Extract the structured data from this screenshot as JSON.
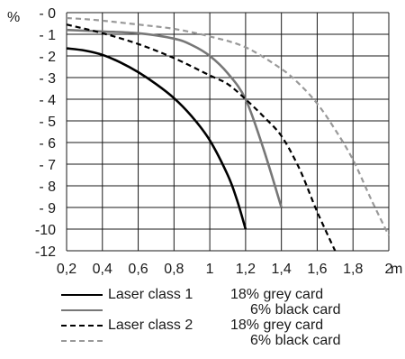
{
  "chart_data": {
    "type": "line",
    "xlabel": "m",
    "ylabel": "%",
    "xlim": [
      0.2,
      2.0
    ],
    "ylim": [
      -12,
      0
    ],
    "x_ticks": [
      {
        "v": 0.2,
        "label": "0,2"
      },
      {
        "v": 0.4,
        "label": "0,4"
      },
      {
        "v": 0.6,
        "label": "0,6"
      },
      {
        "v": 0.8,
        "label": "0,8"
      },
      {
        "v": 1.0,
        "label": "1"
      },
      {
        "v": 1.2,
        "label": "1,2"
      },
      {
        "v": 1.4,
        "label": "1,4"
      },
      {
        "v": 1.6,
        "label": "1,6"
      },
      {
        "v": 1.8,
        "label": "1,8"
      },
      {
        "v": 2.0,
        "label": "2"
      }
    ],
    "y_ticks": [
      {
        "v": 0,
        "label": "- 0"
      },
      {
        "v": -1,
        "label": "- 1"
      },
      {
        "v": -2,
        "label": "- 2"
      },
      {
        "v": -3,
        "label": "- 3"
      },
      {
        "v": -4,
        "label": "- 4"
      },
      {
        "v": -5,
        "label": "- 5"
      },
      {
        "v": -6,
        "label": "- 6"
      },
      {
        "v": -7,
        "label": "- 7"
      },
      {
        "v": -8,
        "label": "- 8"
      },
      {
        "v": -9,
        "label": "- 9"
      },
      {
        "v": -10,
        "label": "-10"
      },
      {
        "v": -12,
        "label": "-12"
      }
    ],
    "grid": true,
    "legend_position": "bottom",
    "series": [
      {
        "laser": "Laser class 1",
        "target": "18% grey card",
        "color": "#000000",
        "dash": "solid",
        "points": [
          [
            0.2,
            -1.65
          ],
          [
            0.3,
            -1.75
          ],
          [
            0.4,
            -1.95
          ],
          [
            0.5,
            -2.3
          ],
          [
            0.6,
            -2.75
          ],
          [
            0.7,
            -3.3
          ],
          [
            0.8,
            -3.95
          ],
          [
            0.9,
            -4.8
          ],
          [
            1.0,
            -5.9
          ],
          [
            1.1,
            -7.5
          ],
          [
            1.15,
            -8.6
          ],
          [
            1.2,
            -10
          ]
        ]
      },
      {
        "laser": "",
        "target": "6% black card",
        "color": "#777777",
        "dash": "solid",
        "points": [
          [
            0.2,
            -0.8
          ],
          [
            0.4,
            -0.87
          ],
          [
            0.6,
            -0.95
          ],
          [
            0.8,
            -1.2
          ],
          [
            0.9,
            -1.5
          ],
          [
            1.0,
            -2.0
          ],
          [
            1.1,
            -2.8
          ],
          [
            1.2,
            -4.0
          ],
          [
            1.3,
            -6.3
          ],
          [
            1.4,
            -9.0
          ]
        ]
      },
      {
        "laser": "Laser class 2",
        "target": "18% grey card",
        "color": "#000000",
        "dash": "dashed",
        "points": [
          [
            0.2,
            -0.55
          ],
          [
            0.4,
            -0.95
          ],
          [
            0.6,
            -1.45
          ],
          [
            0.8,
            -2.1
          ],
          [
            1.0,
            -2.9
          ],
          [
            1.1,
            -3.3
          ],
          [
            1.2,
            -4.0
          ],
          [
            1.3,
            -4.8
          ],
          [
            1.4,
            -5.7
          ],
          [
            1.5,
            -7.2
          ],
          [
            1.6,
            -9.2
          ],
          [
            1.7,
            -12.0
          ]
        ]
      },
      {
        "laser": "",
        "target": "6% black card",
        "color": "#999999",
        "dash": "dashed",
        "points": [
          [
            0.2,
            -0.25
          ],
          [
            0.3,
            -0.3
          ],
          [
            0.4,
            -0.37
          ],
          [
            0.6,
            -0.55
          ],
          [
            0.8,
            -0.75
          ],
          [
            1.0,
            -1.1
          ],
          [
            1.2,
            -1.6
          ],
          [
            1.4,
            -2.6
          ],
          [
            1.5,
            -3.3
          ],
          [
            1.6,
            -4.2
          ],
          [
            1.7,
            -5.4
          ],
          [
            1.8,
            -6.8
          ],
          [
            1.9,
            -8.6
          ],
          [
            2.0,
            -10.6
          ]
        ]
      }
    ]
  }
}
